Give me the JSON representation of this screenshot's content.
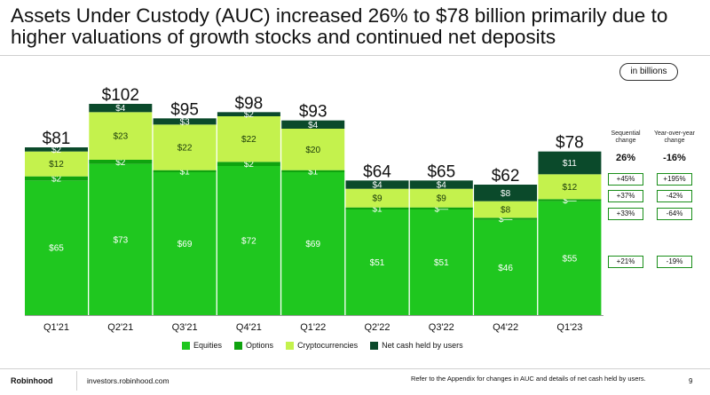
{
  "title": "Assets Under Custody (AUC) increased 26% to $78 billion primarily due to higher valuations of growth stocks and continued net deposits",
  "unit_label": "in billions",
  "colors": {
    "equities": "#1fc71f",
    "options": "#0fa30f",
    "crypto": "#c4f24d",
    "cash": "#0b4a2b"
  },
  "chart_data": {
    "type": "bar",
    "stacked": true,
    "categories": [
      "Q1'21",
      "Q2'21",
      "Q3'21",
      "Q4'21",
      "Q1'22",
      "Q2'22",
      "Q3'22",
      "Q4'22",
      "Q1'23"
    ],
    "series": [
      {
        "name": "Equities",
        "values": [
          65,
          73,
          69,
          72,
          69,
          51,
          51,
          46,
          55
        ],
        "labels": [
          "$65",
          "$73",
          "$69",
          "$72",
          "$69",
          "$51",
          "$51",
          "$46",
          "$55"
        ]
      },
      {
        "name": "Options",
        "values": [
          2,
          2,
          1,
          2,
          1,
          1,
          1,
          1,
          1
        ],
        "labels": [
          "$2",
          "$2",
          "$1",
          "$2",
          "$1",
          "$1",
          "$—",
          "$—",
          "$—"
        ]
      },
      {
        "name": "Cryptocurrencies",
        "values": [
          12,
          23,
          22,
          22,
          20,
          9,
          9,
          8,
          12
        ],
        "labels": [
          "$12",
          "$23",
          "$22",
          "$22",
          "$20",
          "$9",
          "$9",
          "$8",
          "$12"
        ]
      },
      {
        "name": "Net cash held by users",
        "values": [
          2,
          4,
          3,
          2,
          4,
          4,
          4,
          8,
          11
        ],
        "labels": [
          "$2",
          "$4",
          "$3",
          "$2",
          "$4",
          "$4",
          "$4",
          "$8",
          "$11"
        ]
      }
    ],
    "totals": [
      "$81",
      "$102",
      "$95",
      "$98",
      "$93",
      "$64",
      "$65",
      "$62",
      "$78"
    ],
    "ylim": [
      0,
      105
    ]
  },
  "changes": {
    "headers": {
      "sequential": "Sequential change",
      "yoy": "Year-over-year change"
    },
    "totals": {
      "sequential": "26%",
      "yoy": "-16%"
    },
    "rows": [
      {
        "sequential": "+45%",
        "yoy": "+195%"
      },
      {
        "sequential": "+37%",
        "yoy": "-42%"
      },
      {
        "sequential": "+33%",
        "yoy": "-64%"
      },
      {
        "sequential": "+21%",
        "yoy": "-19%"
      }
    ]
  },
  "legend": [
    {
      "label": "Equities",
      "color": "#1fc71f"
    },
    {
      "label": "Options",
      "color": "#0fa30f"
    },
    {
      "label": "Cryptocurrencies",
      "color": "#c4f24d"
    },
    {
      "label": "Net cash held by users",
      "color": "#0b4a2b"
    }
  ],
  "footer": {
    "brand": "Robinhood",
    "site": "investors.robinhood.com",
    "note": "Refer to the Appendix for changes in AUC and details of net cash held by users.",
    "page": "9"
  }
}
